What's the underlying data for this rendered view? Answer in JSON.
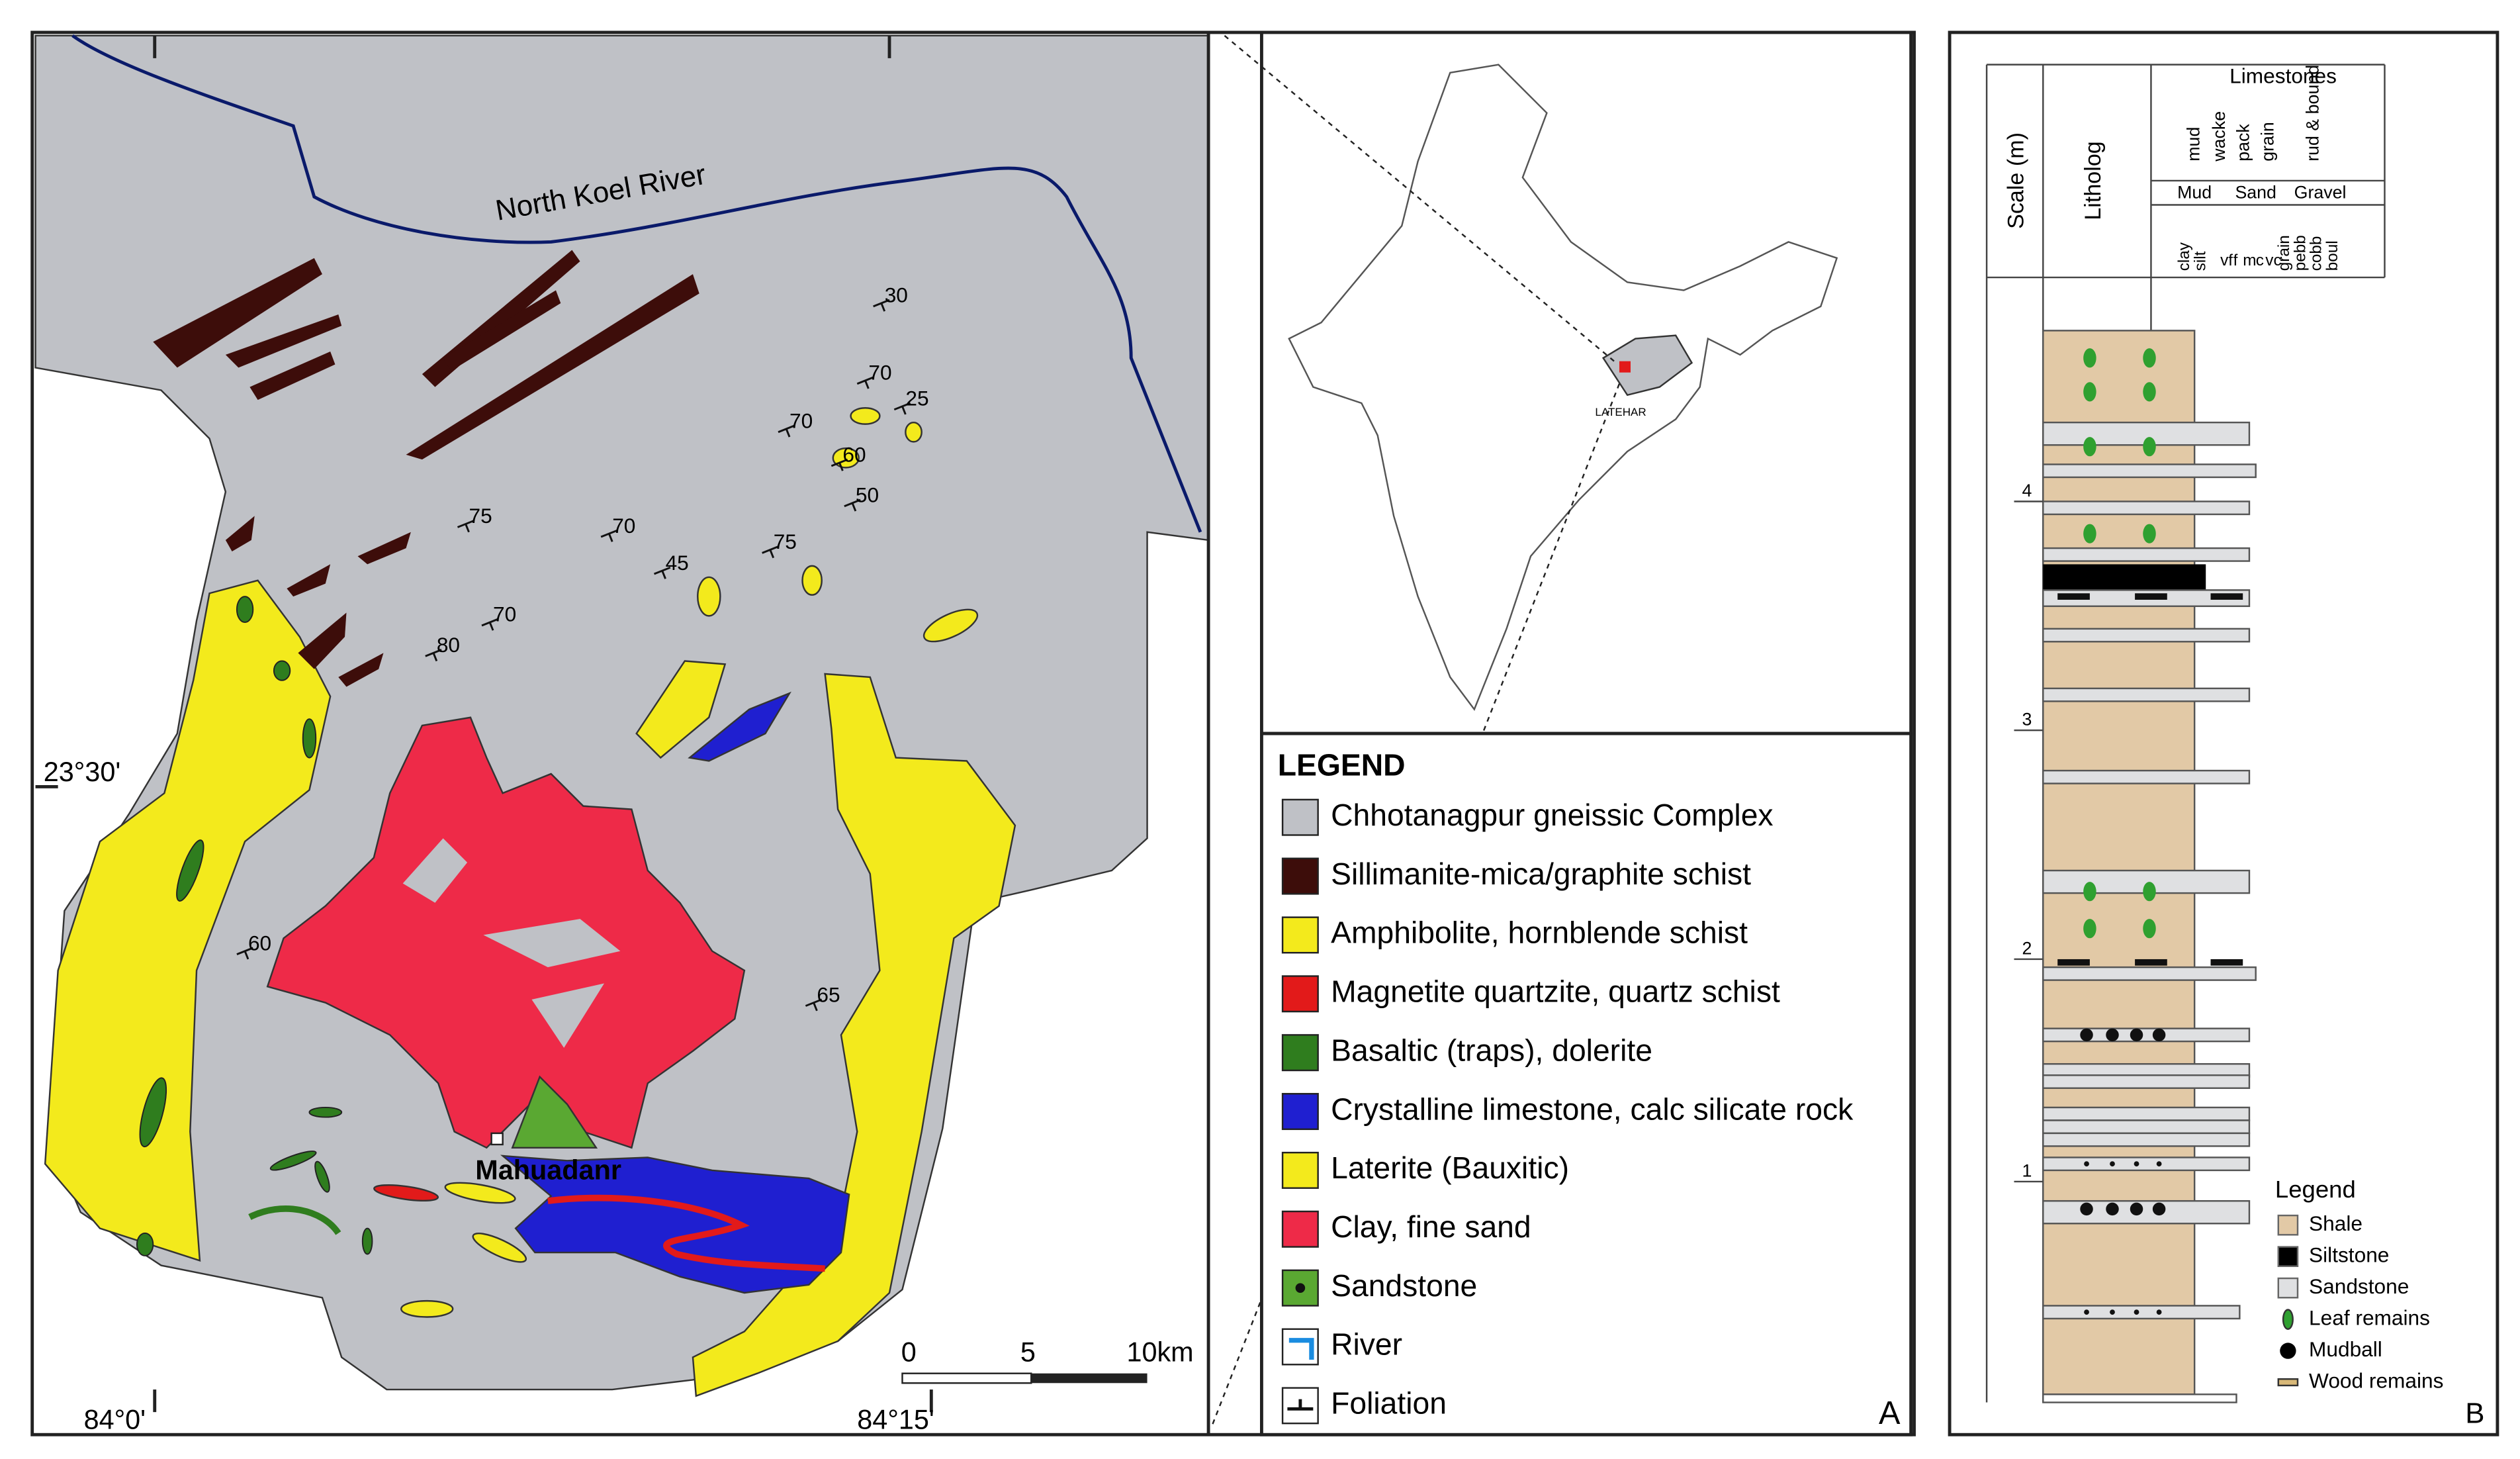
{
  "panel_a": {
    "label": "A",
    "map": {
      "river": "North Koel River",
      "place": "Mahuadanr",
      "lat": "23°30'",
      "lon": [
        "84°0'",
        "84°15'"
      ],
      "scale": [
        "0",
        "5",
        "10km"
      ],
      "dips": [
        30,
        70,
        25,
        70,
        60,
        50,
        75,
        70,
        75,
        45,
        70,
        80,
        60,
        65
      ]
    },
    "inset": {
      "place": "LATEHAR"
    },
    "legend": {
      "title": "LEGEND",
      "items": [
        "Chhotanagpur gneissic Complex",
        "Sillimanite-mica/graphite schist",
        "Amphibolite, hornblende schist",
        "Magnetite  quartzite, quartz schist",
        "Basaltic (traps), dolerite",
        "Crystalline limestone, calc silicate rock",
        "Laterite (Bauxitic)",
        "Clay, fine sand",
        "Sandstone",
        "River",
        "Foliation"
      ]
    }
  },
  "panel_b": {
    "label": "B",
    "scale_title": "Scale (m)",
    "litholog_title": "Litholog",
    "limestones": {
      "title": "Limestones",
      "types": [
        "mud",
        "wacke",
        "pack",
        "grain",
        "rud & bound"
      ]
    },
    "grain_groups": [
      "Mud",
      "Sand",
      "Gravel"
    ],
    "grain_sizes": [
      "clay",
      "silt",
      "vf",
      "f",
      "m",
      "c",
      "vc",
      "grain",
      "pebb",
      "cobb",
      "boul"
    ],
    "scale_ticks": [
      4,
      3,
      2,
      1
    ],
    "legend": {
      "title": "Legend",
      "items": [
        "Shale",
        "Siltstone",
        "Sandstone",
        "Leaf remains",
        "Mudball",
        "Wood remains"
      ]
    }
  }
}
